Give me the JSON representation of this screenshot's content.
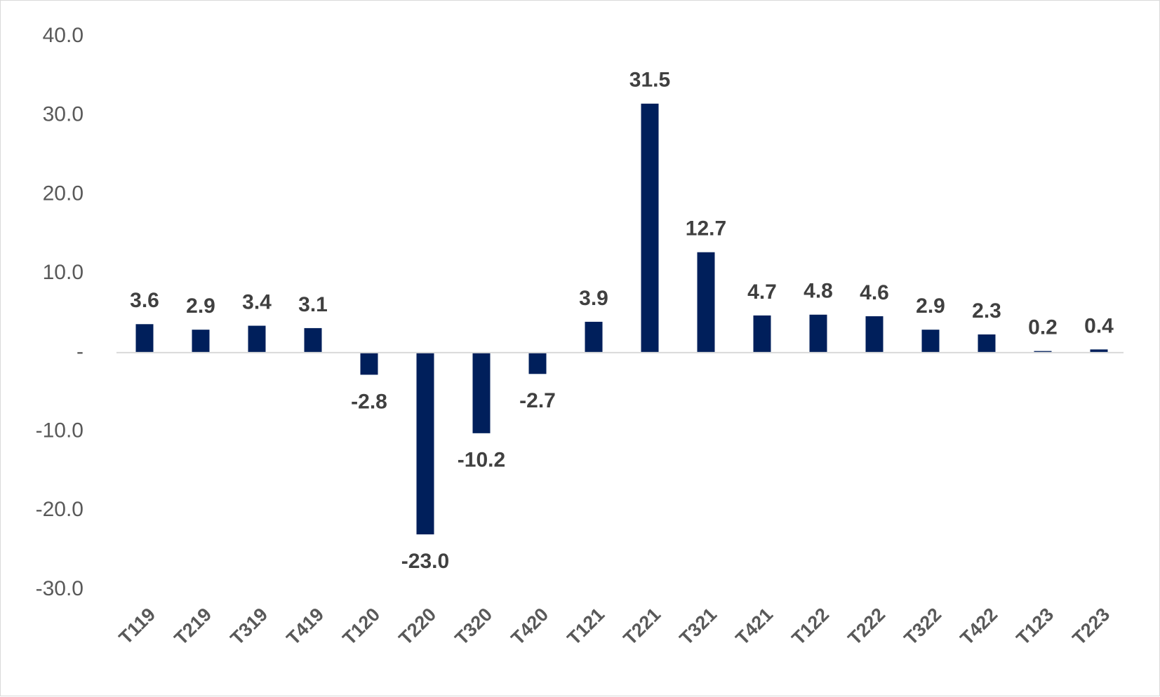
{
  "chart_data": {
    "type": "bar",
    "title": "",
    "xlabel": "",
    "ylabel": "",
    "ylim": [
      -30,
      40
    ],
    "yticks": [
      40,
      30,
      20,
      10,
      0,
      -10,
      -20,
      -30
    ],
    "ytick_labels": [
      "40.0",
      "30.0",
      "20.0",
      "10.0",
      "-",
      "-10.0",
      "-20.0",
      "-30.0"
    ],
    "categories": [
      "T119",
      "T219",
      "T319",
      "T419",
      "T120",
      "T220",
      "T320",
      "T420",
      "T121",
      "T221",
      "T321",
      "T421",
      "T122",
      "T222",
      "T322",
      "T422",
      "T123",
      "T223"
    ],
    "values": [
      3.6,
      2.9,
      3.4,
      3.1,
      -2.8,
      -23.0,
      -10.2,
      -2.7,
      3.9,
      31.5,
      12.7,
      4.7,
      4.8,
      4.6,
      2.9,
      2.3,
      0.2,
      0.4
    ],
    "value_labels": [
      "3.6",
      "2.9",
      "3.4",
      "3.1",
      "-2.8",
      "-23.0",
      "-10.2",
      "-2.7",
      "3.9",
      "31.5",
      "12.7",
      "4.7",
      "4.8",
      "4.6",
      "2.9",
      "2.3",
      "0.2",
      "0.4"
    ],
    "bar_color": "#001f5b",
    "grid": false,
    "legend": "none"
  }
}
